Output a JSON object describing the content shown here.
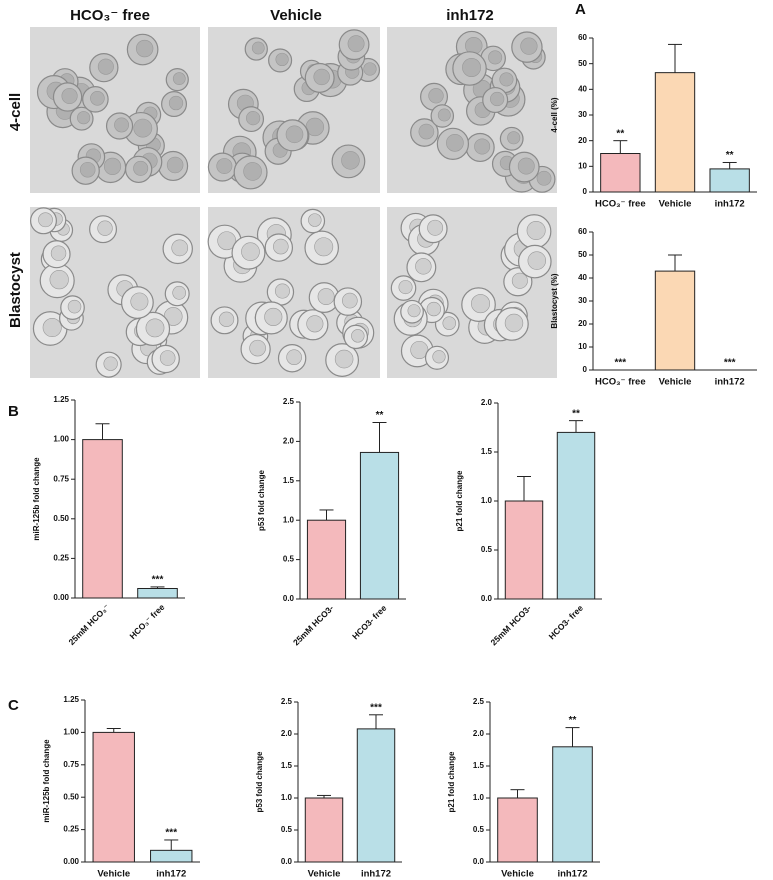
{
  "figure": {
    "panels": [
      "A",
      "B",
      "C"
    ],
    "columns": [
      "HCO₃⁻ free",
      "Vehicle",
      "inh172"
    ],
    "rows": [
      "4-cell",
      "Blastocyst"
    ]
  },
  "chart_data": [
    {
      "type": "bar",
      "ylabel": "4-cell (%)",
      "categories": [
        "HCO₃⁻ free",
        "Vehicle",
        "inh172"
      ],
      "values": [
        15,
        46.5,
        9
      ],
      "errors": [
        5,
        11,
        2.5
      ],
      "colors": [
        "#f4b9bc",
        "#fbd8b4",
        "#b9dfe7"
      ],
      "annotations": [
        "**",
        null,
        "**"
      ],
      "ylim": [
        0,
        60
      ],
      "yticks": [
        0,
        10,
        20,
        30,
        40,
        50,
        60
      ]
    },
    {
      "type": "bar",
      "ylabel": "Blastocyst (%)",
      "categories": [
        "HCO₃⁻ free",
        "Vehicle",
        "inh172"
      ],
      "values": [
        0,
        43,
        0
      ],
      "errors": [
        0,
        7,
        0
      ],
      "colors": [
        "#f4b9bc",
        "#fbd8b4",
        "#b9dfe7"
      ],
      "annotations": [
        "***",
        null,
        "***"
      ],
      "ylim": [
        0,
        60
      ],
      "yticks": [
        0,
        10,
        20,
        30,
        40,
        50,
        60
      ]
    },
    {
      "type": "bar",
      "ylabel": "miR-125b fold change",
      "categories": [
        "25mM HCO₃⁻",
        "HCO₃⁻ free"
      ],
      "values": [
        1.0,
        0.06
      ],
      "errors": [
        0.1,
        0.01
      ],
      "colors": [
        "#f4b9bc",
        "#b9dfe7"
      ],
      "annotations": [
        null,
        "***"
      ],
      "ylim": [
        0,
        1.25
      ],
      "yticks": [
        {
          "value": 0,
          "label": "0.00"
        },
        {
          "value": 0.25,
          "label": "0.25"
        },
        {
          "value": 0.5,
          "label": "0.50"
        },
        {
          "value": 0.75,
          "label": "0.75"
        },
        {
          "value": 1,
          "label": "1.00"
        },
        {
          "value": 1.25,
          "label": "1.25"
        }
      ]
    },
    {
      "type": "bar",
      "ylabel": "p53 fold change",
      "categories": [
        "25mM HCO3-",
        "HCO3- free"
      ],
      "values": [
        1.0,
        1.86
      ],
      "errors": [
        0.13,
        0.38
      ],
      "colors": [
        "#f4b9bc",
        "#b9dfe7"
      ],
      "annotations": [
        null,
        "**"
      ],
      "ylim": [
        0,
        2.5
      ],
      "yticks": [
        {
          "value": 0,
          "label": "0.0"
        },
        0.5,
        {
          "value": 1,
          "label": "1.0"
        },
        1.5,
        {
          "value": 2,
          "label": "2.0"
        },
        2.5
      ]
    },
    {
      "type": "bar",
      "ylabel": "p21 fold change",
      "categories": [
        "25mM HCO3-",
        "HCO3- free"
      ],
      "values": [
        1.0,
        1.7
      ],
      "errors": [
        0.25,
        0.12
      ],
      "colors": [
        "#f4b9bc",
        "#b9dfe7"
      ],
      "annotations": [
        null,
        "**"
      ],
      "ylim": [
        0,
        2.0
      ],
      "yticks": [
        {
          "value": 0,
          "label": "0.0"
        },
        0.5,
        {
          "value": 1,
          "label": "1.0"
        },
        1.5,
        {
          "value": 2,
          "label": "2.0"
        }
      ]
    },
    {
      "type": "bar",
      "ylabel": "miR-125b fold change",
      "categories": [
        "Vehicle",
        "inh172"
      ],
      "values": [
        1.0,
        0.09
      ],
      "errors": [
        0.03,
        0.08
      ],
      "colors": [
        "#f4b9bc",
        "#b9dfe7"
      ],
      "annotations": [
        null,
        "***"
      ],
      "ylim": [
        0,
        1.25
      ],
      "yticks": [
        {
          "value": 0,
          "label": "0.00"
        },
        {
          "value": 0.25,
          "label": "0.25"
        },
        {
          "value": 0.5,
          "label": "0.50"
        },
        {
          "value": 0.75,
          "label": "0.75"
        },
        {
          "value": 1,
          "label": "1.00"
        },
        {
          "value": 1.25,
          "label": "1.25"
        }
      ]
    },
    {
      "type": "bar",
      "ylabel": "p53 fold change",
      "categories": [
        "Vehicle",
        "inh172"
      ],
      "values": [
        1.0,
        2.08
      ],
      "errors": [
        0.04,
        0.22
      ],
      "colors": [
        "#f4b9bc",
        "#b9dfe7"
      ],
      "annotations": [
        null,
        "***"
      ],
      "ylim": [
        0,
        2.5
      ],
      "yticks": [
        {
          "value": 0,
          "label": "0.0"
        },
        0.5,
        {
          "value": 1,
          "label": "1.0"
        },
        1.5,
        {
          "value": 2,
          "label": "2.0"
        },
        2.5
      ]
    },
    {
      "type": "bar",
      "ylabel": "p21 fold change",
      "categories": [
        "Vehicle",
        "inh172"
      ],
      "values": [
        1.0,
        1.8
      ],
      "errors": [
        0.13,
        0.3
      ],
      "colors": [
        "#f4b9bc",
        "#b9dfe7"
      ],
      "annotations": [
        null,
        "**"
      ],
      "ylim": [
        0,
        2.5
      ],
      "yticks": [
        {
          "value": 0,
          "label": "0.0"
        },
        0.5,
        {
          "value": 1,
          "label": "1.0"
        },
        1.5,
        {
          "value": 2,
          "label": "2.0"
        },
        2.5
      ]
    }
  ]
}
